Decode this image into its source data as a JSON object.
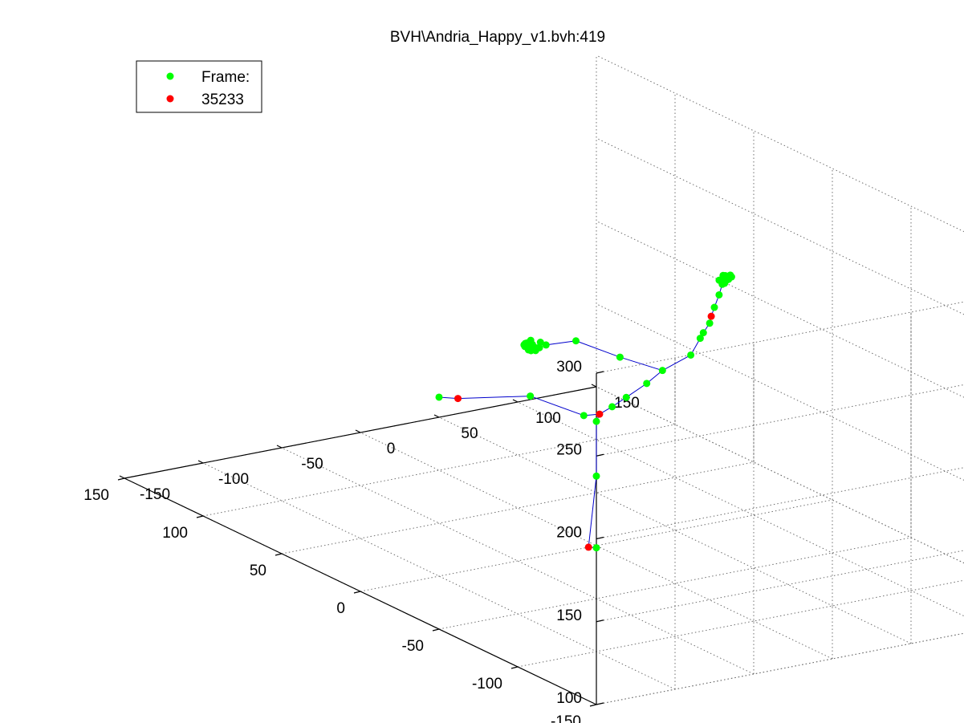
{
  "chart_data": {
    "type": "scatter",
    "title": "BVH\\Andria_Happy_v1.bvh:419",
    "legend": {
      "placement": "top-left",
      "entries": [
        {
          "label": "Frame:",
          "color": "#00ff00"
        },
        {
          "label": "35233",
          "color": "#ff0000"
        }
      ]
    },
    "axes": {
      "x": {
        "range": [
          -150,
          150
        ],
        "ticks": [
          -150,
          -100,
          -50,
          0,
          50,
          100,
          150
        ],
        "tick_labels": [
          "-150",
          "-100",
          "-50",
          "0",
          "50",
          "100",
          "150"
        ]
      },
      "y": {
        "range": [
          -150,
          150
        ],
        "ticks": [
          -150,
          -100,
          -50,
          0,
          50,
          100,
          150
        ],
        "tick_labels": [
          "-150",
          "-100",
          "-50",
          "0",
          "50",
          "100",
          "150"
        ]
      },
      "z": {
        "range": [
          100,
          300
        ],
        "ticks": [
          100,
          150,
          200,
          250,
          300
        ],
        "tick_labels": [
          "100",
          "150",
          "200",
          "250",
          "300"
        ]
      }
    },
    "grid": true,
    "line_color": "#0000cc",
    "joints": [
      {
        "id": 0,
        "x": -5,
        "y": 0,
        "z": 100,
        "color": "#ff0000"
      },
      {
        "id": 1,
        "x": -2,
        "y": -2,
        "z": 100,
        "color": "#00ff00"
      },
      {
        "id": 2,
        "x": 0,
        "y": 0,
        "z": 142,
        "color": "#00ff00"
      },
      {
        "id": 3,
        "x": 0,
        "y": 0,
        "z": 175,
        "color": "#00ff00"
      },
      {
        "id": 4,
        "x": 2,
        "y": 0,
        "z": 179,
        "color": "#ff0000"
      },
      {
        "id": 5,
        "x": -8,
        "y": 0,
        "z": 180,
        "color": "#00ff00"
      },
      {
        "id": 6,
        "x": -42,
        "y": 0,
        "z": 198,
        "color": "#00ff00"
      },
      {
        "id": 7,
        "x": -88,
        "y": 0,
        "z": 205,
        "color": "#ff0000"
      },
      {
        "id": 8,
        "x": -100,
        "y": 0,
        "z": 208,
        "color": "#00ff00"
      },
      {
        "id": 9,
        "x": 10,
        "y": 0,
        "z": 182,
        "color": "#00ff00"
      },
      {
        "id": 10,
        "x": 19,
        "y": 0,
        "z": 186,
        "color": "#00ff00"
      },
      {
        "id": 11,
        "x": 32,
        "y": 0,
        "z": 192,
        "color": "#00ff00"
      },
      {
        "id": 12,
        "x": 42,
        "y": 0,
        "z": 198,
        "color": "#00ff00"
      },
      {
        "id": 13,
        "x": 15,
        "y": 0,
        "z": 211,
        "color": "#00ff00"
      },
      {
        "id": 14,
        "x": -13,
        "y": 0,
        "z": 226,
        "color": "#00ff00"
      },
      {
        "id": 15,
        "x": -32,
        "y": 0,
        "z": 227,
        "color": "#00ff00"
      },
      {
        "id": 16,
        "x": 60,
        "y": 0,
        "z": 204,
        "color": "#00ff00"
      },
      {
        "id": 17,
        "x": 66,
        "y": 0,
        "z": 213,
        "color": "#00ff00"
      },
      {
        "id": 18,
        "x": 68,
        "y": 0,
        "z": 216,
        "color": "#00ff00"
      },
      {
        "id": 19,
        "x": 72,
        "y": 0,
        "z": 221,
        "color": "#00ff00"
      },
      {
        "id": 20,
        "x": 73,
        "y": 0,
        "z": 225,
        "color": "#ff0000"
      },
      {
        "id": 21,
        "x": 75,
        "y": 0,
        "z": 230,
        "color": "#00ff00"
      },
      {
        "id": 22,
        "x": 78,
        "y": 0,
        "z": 237,
        "color": "#00ff00"
      },
      {
        "id": 23,
        "x": 80,
        "y": 0,
        "z": 243,
        "color": "#00ff00"
      }
    ],
    "bones": [
      [
        0,
        1
      ],
      [
        0,
        2
      ],
      [
        2,
        3
      ],
      [
        3,
        4
      ],
      [
        4,
        5
      ],
      [
        5,
        6
      ],
      [
        6,
        7
      ],
      [
        7,
        8
      ],
      [
        4,
        9
      ],
      [
        9,
        10
      ],
      [
        10,
        11
      ],
      [
        11,
        12
      ],
      [
        12,
        13
      ],
      [
        13,
        14
      ],
      [
        14,
        15
      ],
      [
        12,
        16
      ],
      [
        16,
        17
      ],
      [
        17,
        18
      ],
      [
        18,
        19
      ],
      [
        19,
        20
      ],
      [
        20,
        21
      ],
      [
        21,
        22
      ],
      [
        22,
        23
      ]
    ],
    "clusters": [
      {
        "x": -42,
        "y": 0,
        "z": 229,
        "spread": 14,
        "count": 26,
        "color": "#00ff00"
      },
      {
        "x": 82,
        "y": 0,
        "z": 246,
        "spread": 10,
        "count": 20,
        "color": "#00ff00"
      }
    ]
  }
}
